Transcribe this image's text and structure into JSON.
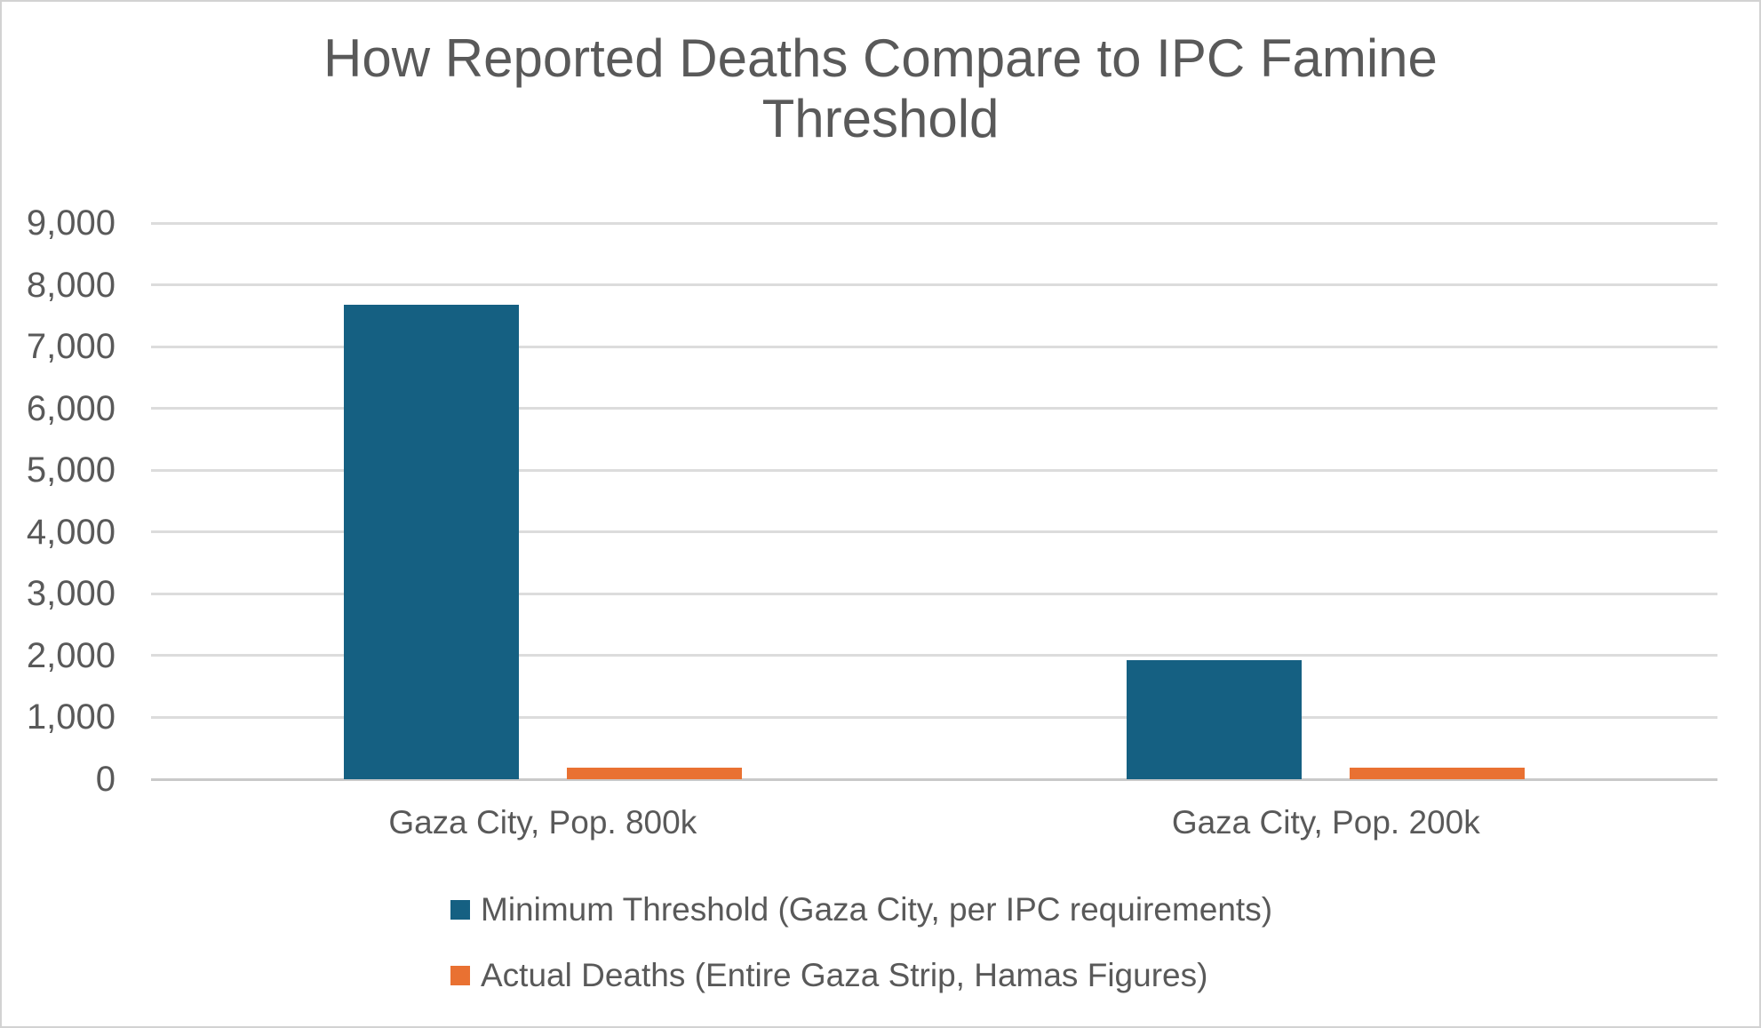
{
  "chart_data": {
    "type": "bar",
    "title": "How Reported Deaths Compare to IPC Famine Threshold",
    "categories": [
      "Gaza City, Pop. 800k",
      "Gaza City, Pop. 200k"
    ],
    "series": [
      {
        "name": "Minimum Threshold (Gaza City, per IPC requirements)",
        "color": "#156082",
        "values": [
          7680,
          1920
        ]
      },
      {
        "name": "Actual Deaths (Entire Gaza Strip, Hamas Figures)",
        "color": "#E97132",
        "values": [
          180,
          180
        ]
      }
    ],
    "xlabel": "",
    "ylabel": "",
    "ylim": [
      0,
      9000
    ],
    "ytick_step": 1000,
    "ytick_labels": [
      "0",
      "1,000",
      "2,000",
      "3,000",
      "4,000",
      "5,000",
      "6,000",
      "7,000",
      "8,000",
      "9,000"
    ],
    "grid": true,
    "legend_position": "bottom-left-stacked",
    "colors": {
      "background": "#FFFFFF",
      "text": "#595959",
      "gridline": "#DCDCDC",
      "axis_line": "#C9C9C9",
      "frame_border": "#D2D2D2"
    }
  }
}
